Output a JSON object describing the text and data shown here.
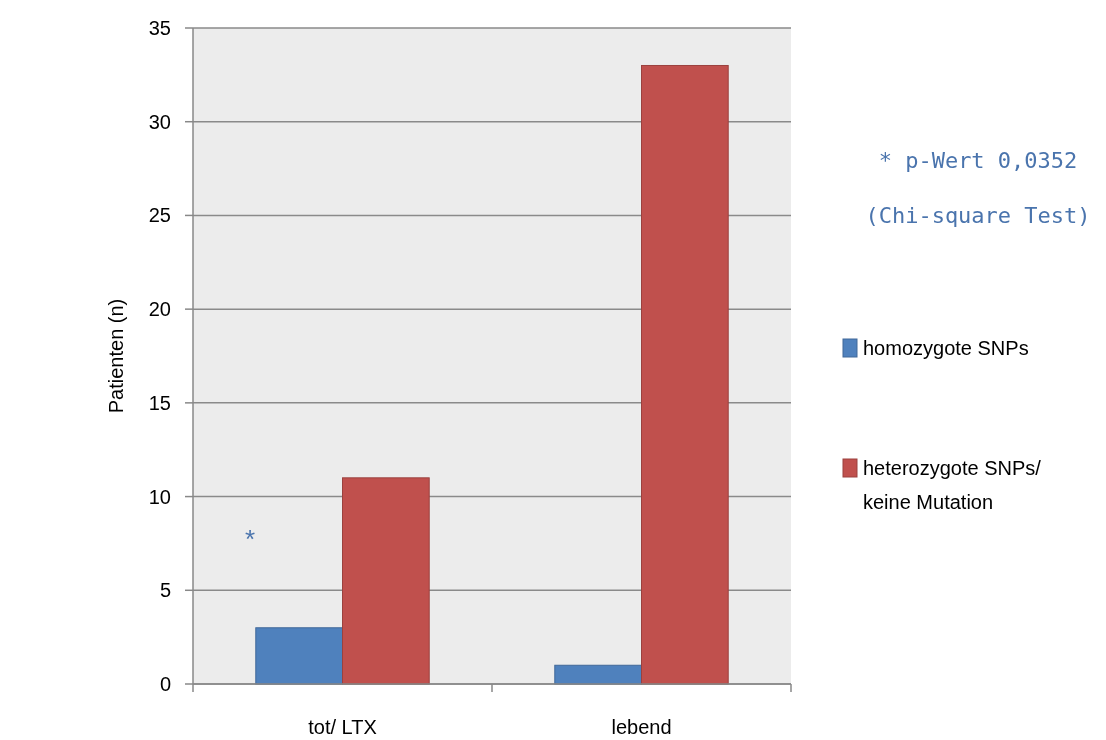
{
  "chart_data": {
    "type": "bar",
    "ylabel": "Patienten (n)",
    "categories": [
      "tot/ LTX",
      "lebend"
    ],
    "series": [
      {
        "name": "homozygote SNPs",
        "color": "#4f81bd",
        "values": [
          3,
          1
        ]
      },
      {
        "name": "heterozygote SNPs/ keine Mutation",
        "color": "#c0504d",
        "values": [
          11,
          33
        ]
      }
    ],
    "ylim": [
      0,
      35
    ],
    "yticks": [
      0,
      5,
      10,
      15,
      20,
      25,
      30,
      35
    ],
    "grid": "y",
    "legend": "right",
    "annotations": [
      "*",
      "* p-Wert 0,0352",
      "(Chi-square Test)"
    ]
  }
}
